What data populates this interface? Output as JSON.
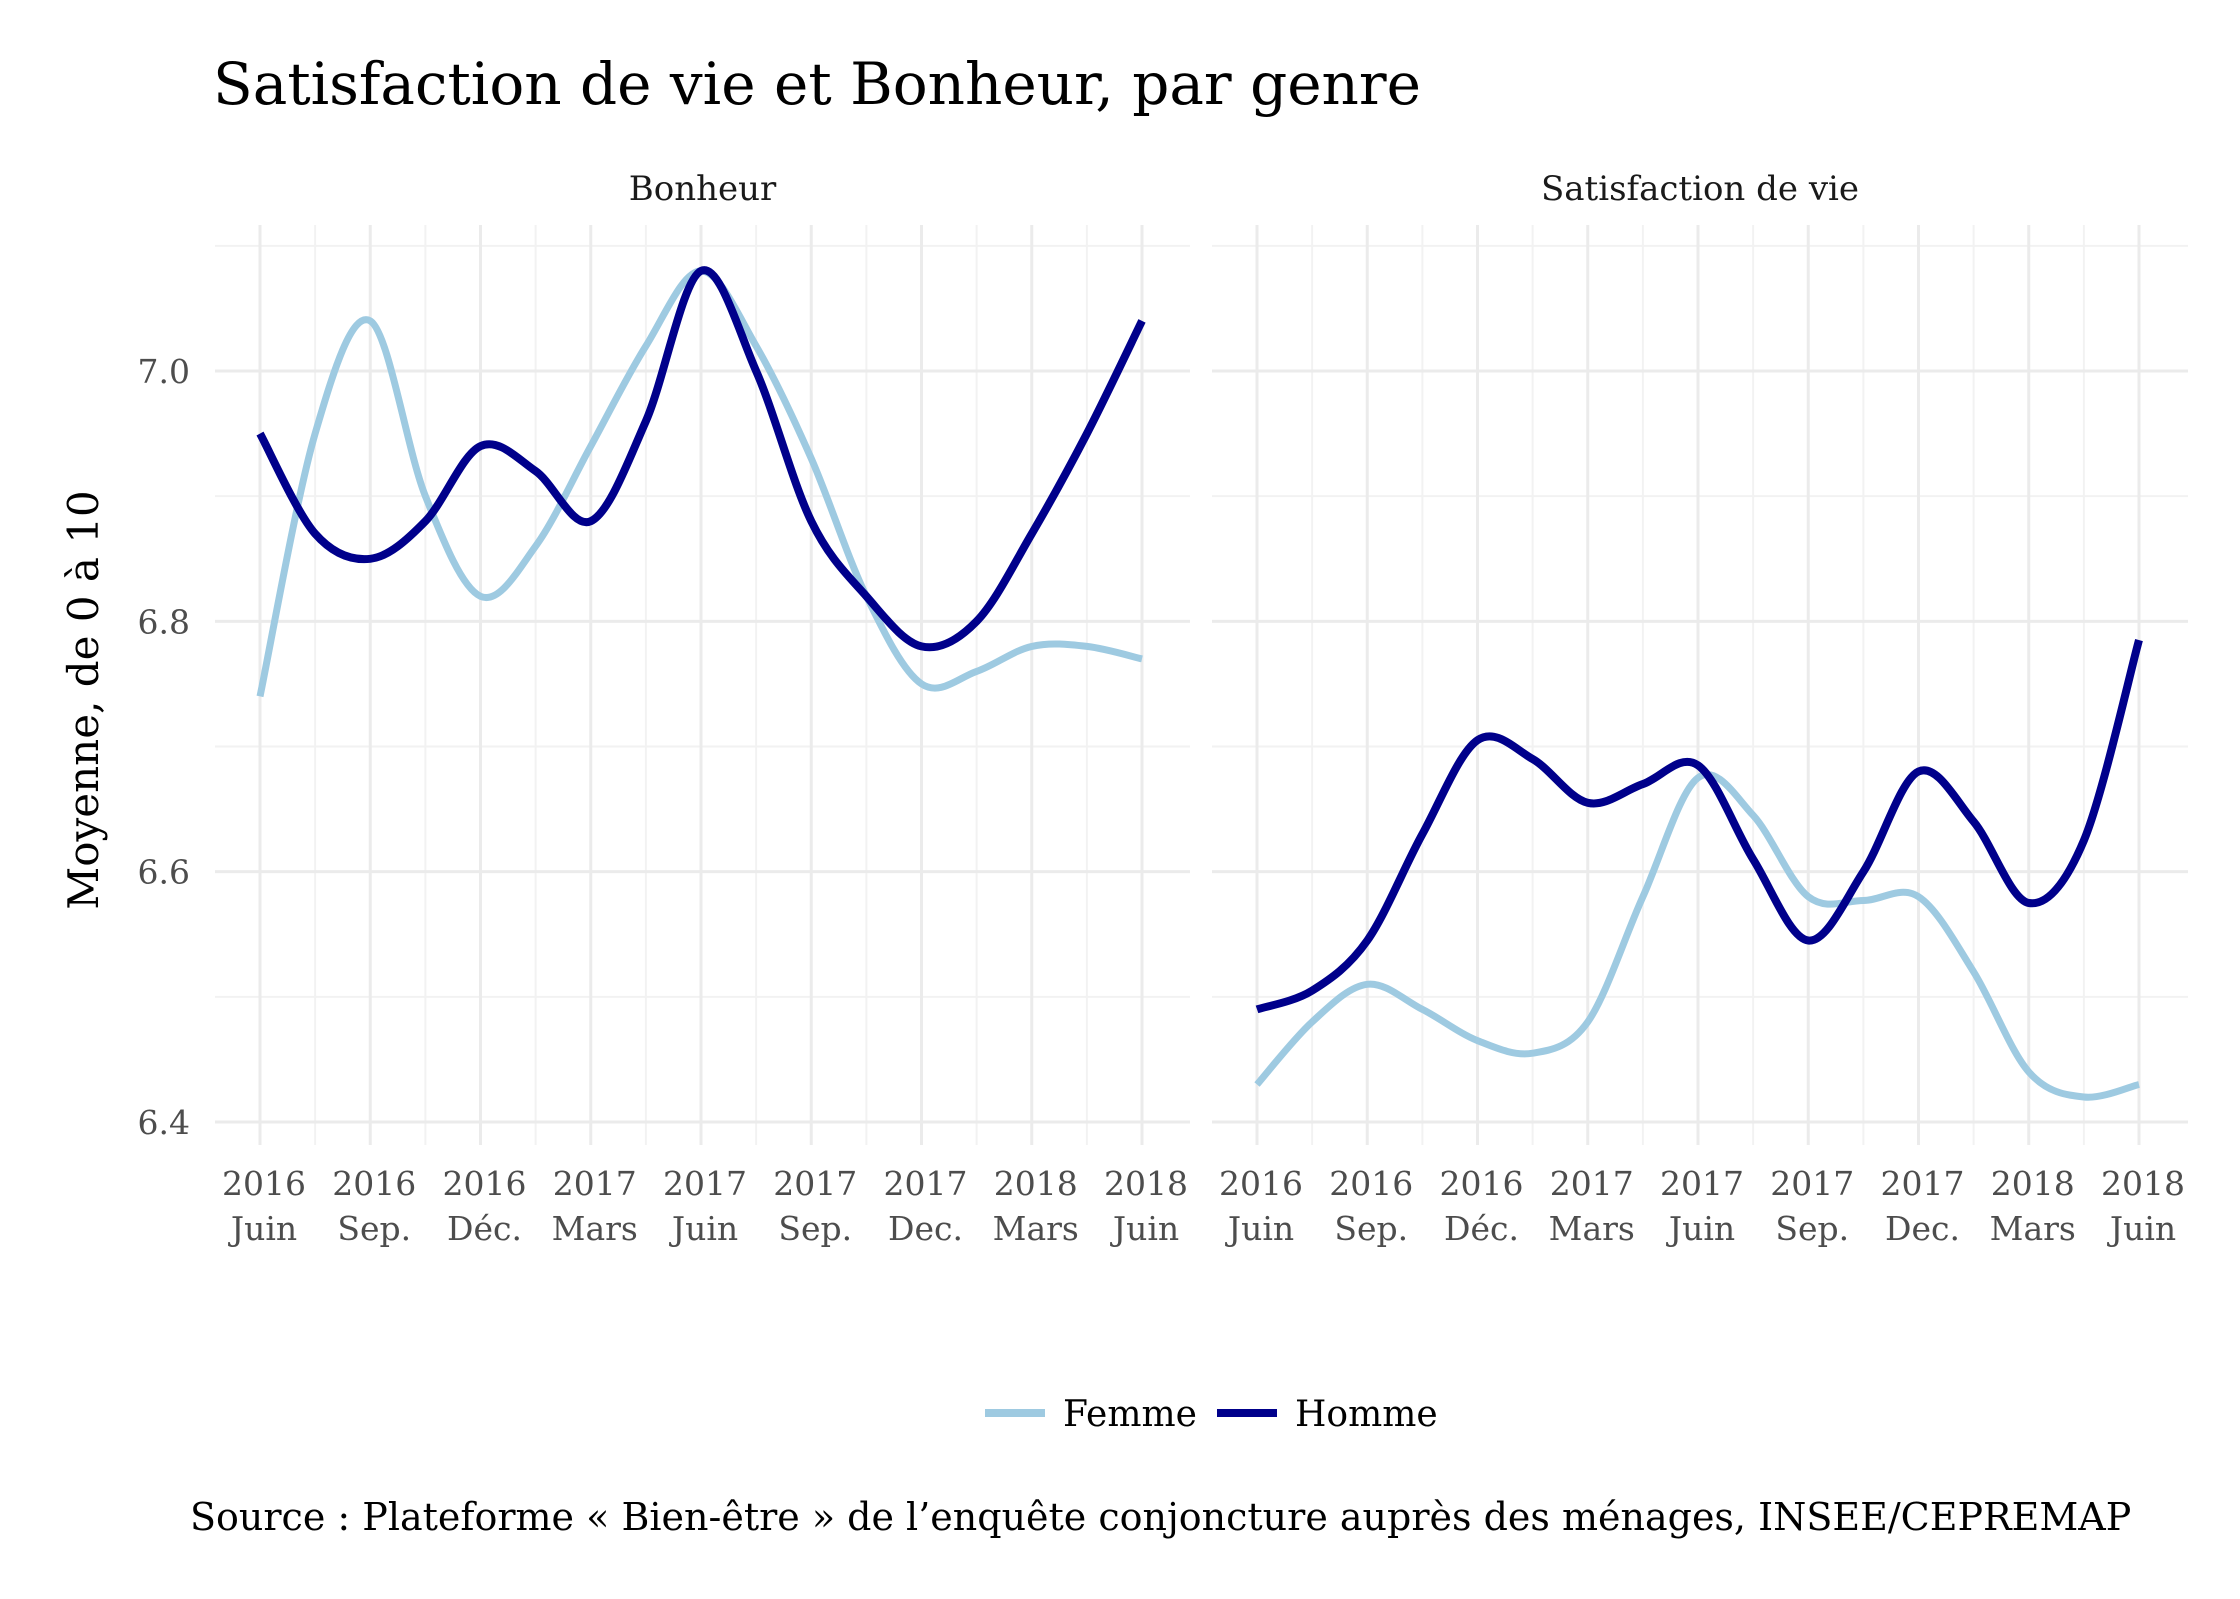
{
  "title": "Satisfaction de vie et Bonheur, par genre",
  "caption": "Source : Plateforme « Bien-être » de l’enquête conjoncture auprès des ménages, INSEE/CEPREMAP",
  "colors": {
    "Femme": "#9ecae1",
    "Homme": "#00008b"
  },
  "chart_data": {
    "type": "line",
    "ylabel": "Moyenne, de 0 à 10",
    "ylim": [
      6.4,
      7.1
    ],
    "y_ticks": [
      6.4,
      6.6,
      6.8,
      7.0
    ],
    "y_tick_labels": [
      "6.4",
      "6.6",
      "6.8",
      "7.0"
    ],
    "x_ticks": [
      {
        "year": "2016",
        "month": "Juin"
      },
      {
        "year": "2016",
        "month": "Sep."
      },
      {
        "year": "2016",
        "month": "Déc."
      },
      {
        "year": "2017",
        "month": "Mars"
      },
      {
        "year": "2017",
        "month": "Juin"
      },
      {
        "year": "2017",
        "month": "Sep."
      },
      {
        "year": "2017",
        "month": "Dec."
      },
      {
        "year": "2018",
        "month": "Mars"
      },
      {
        "year": "2018",
        "month": "Juin"
      }
    ],
    "legend": {
      "position": "bottom",
      "entries": [
        "Femme",
        "Homme"
      ]
    },
    "grid": true,
    "panels": [
      {
        "label": "Bonheur",
        "series": [
          {
            "name": "Femme",
            "points": [
              [
                0,
                6.74
              ],
              [
                0.5,
                6.95
              ],
              [
                1,
                7.04
              ],
              [
                1.5,
                6.9
              ],
              [
                2,
                6.82
              ],
              [
                2.5,
                6.86
              ],
              [
                3,
                6.94
              ],
              [
                3.5,
                7.02
              ],
              [
                4,
                7.08
              ],
              [
                4.5,
                7.02
              ],
              [
                5,
                6.93
              ],
              [
                5.5,
                6.82
              ],
              [
                6,
                6.75
              ],
              [
                6.5,
                6.76
              ],
              [
                7,
                6.78
              ],
              [
                7.5,
                6.78
              ],
              [
                8,
                6.77
              ]
            ]
          },
          {
            "name": "Homme",
            "points": [
              [
                0,
                6.95
              ],
              [
                0.5,
                6.87
              ],
              [
                1,
                6.85
              ],
              [
                1.5,
                6.88
              ],
              [
                2,
                6.94
              ],
              [
                2.5,
                6.92
              ],
              [
                3,
                6.88
              ],
              [
                3.5,
                6.96
              ],
              [
                4,
                7.08
              ],
              [
                4.5,
                7.0
              ],
              [
                5,
                6.88
              ],
              [
                5.5,
                6.82
              ],
              [
                6,
                6.78
              ],
              [
                6.5,
                6.8
              ],
              [
                7,
                6.87
              ],
              [
                7.5,
                6.95
              ],
              [
                8,
                7.04
              ]
            ]
          }
        ]
      },
      {
        "label": "Satisfaction de vie",
        "series": [
          {
            "name": "Femme",
            "points": [
              [
                0,
                6.43
              ],
              [
                0.5,
                6.48
              ],
              [
                1,
                6.51
              ],
              [
                1.5,
                6.49
              ],
              [
                2,
                6.465
              ],
              [
                2.5,
                6.455
              ],
              [
                3,
                6.48
              ],
              [
                3.5,
                6.58
              ],
              [
                4,
                6.675
              ],
              [
                4.5,
                6.645
              ],
              [
                5,
                6.58
              ],
              [
                5.5,
                6.577
              ],
              [
                6,
                6.58
              ],
              [
                6.5,
                6.52
              ],
              [
                7,
                6.44
              ],
              [
                7.5,
                6.42
              ],
              [
                8,
                6.43
              ]
            ]
          },
          {
            "name": "Homme",
            "points": [
              [
                0,
                6.49
              ],
              [
                0.5,
                6.505
              ],
              [
                1,
                6.545
              ],
              [
                1.5,
                6.63
              ],
              [
                2,
                6.705
              ],
              [
                2.5,
                6.69
              ],
              [
                3,
                6.655
              ],
              [
                3.5,
                6.67
              ],
              [
                4,
                6.685
              ],
              [
                4.5,
                6.61
              ],
              [
                5,
                6.545
              ],
              [
                5.5,
                6.6
              ],
              [
                6,
                6.68
              ],
              [
                6.5,
                6.64
              ],
              [
                7,
                6.575
              ],
              [
                7.5,
                6.625
              ],
              [
                8,
                6.785
              ]
            ]
          }
        ]
      }
    ]
  }
}
